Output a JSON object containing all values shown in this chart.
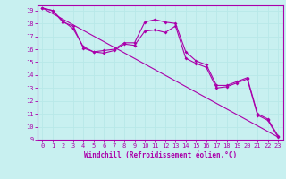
{
  "background_color": "#c8f0f0",
  "grid_color": "#b8e8e8",
  "line_color": "#aa00aa",
  "spine_color": "#aa00aa",
  "xlabel": "Windchill (Refroidissement éolien,°C)",
  "xlim": [
    -0.5,
    23.5
  ],
  "ylim": [
    9,
    19.4
  ],
  "yticks": [
    9,
    10,
    11,
    12,
    13,
    14,
    15,
    16,
    17,
    18,
    19
  ],
  "xticks": [
    0,
    1,
    2,
    3,
    4,
    5,
    6,
    7,
    8,
    9,
    10,
    11,
    12,
    13,
    14,
    15,
    16,
    17,
    18,
    19,
    20,
    21,
    22,
    23
  ],
  "series1": {
    "x": [
      0,
      1,
      2,
      3,
      4,
      5,
      6,
      7,
      8,
      9,
      10,
      11,
      12,
      13,
      14,
      15,
      16,
      17,
      18,
      19,
      20,
      21,
      22,
      23
    ],
    "y": [
      19.2,
      19.0,
      18.1,
      17.8,
      16.1,
      15.8,
      15.9,
      16.0,
      16.5,
      16.5,
      18.1,
      18.3,
      18.1,
      18.0,
      15.8,
      15.1,
      14.8,
      13.2,
      13.2,
      13.5,
      13.8,
      11.0,
      10.6,
      9.3
    ]
  },
  "series2": {
    "x": [
      0,
      1,
      2,
      3,
      4,
      5,
      6,
      7,
      8,
      9,
      10,
      11,
      12,
      13,
      14,
      15,
      16,
      17,
      18,
      19,
      20,
      21,
      22,
      23
    ],
    "y": [
      19.2,
      19.0,
      18.2,
      17.6,
      16.2,
      15.8,
      15.7,
      15.9,
      16.4,
      16.3,
      17.4,
      17.5,
      17.3,
      17.8,
      15.3,
      14.9,
      14.6,
      13.0,
      13.1,
      13.4,
      13.7,
      10.9,
      10.5,
      9.2
    ]
  },
  "series3": {
    "x": [
      0,
      23
    ],
    "y": [
      19.2,
      9.2
    ]
  },
  "tick_fontsize": 5,
  "xlabel_fontsize": 5.5
}
